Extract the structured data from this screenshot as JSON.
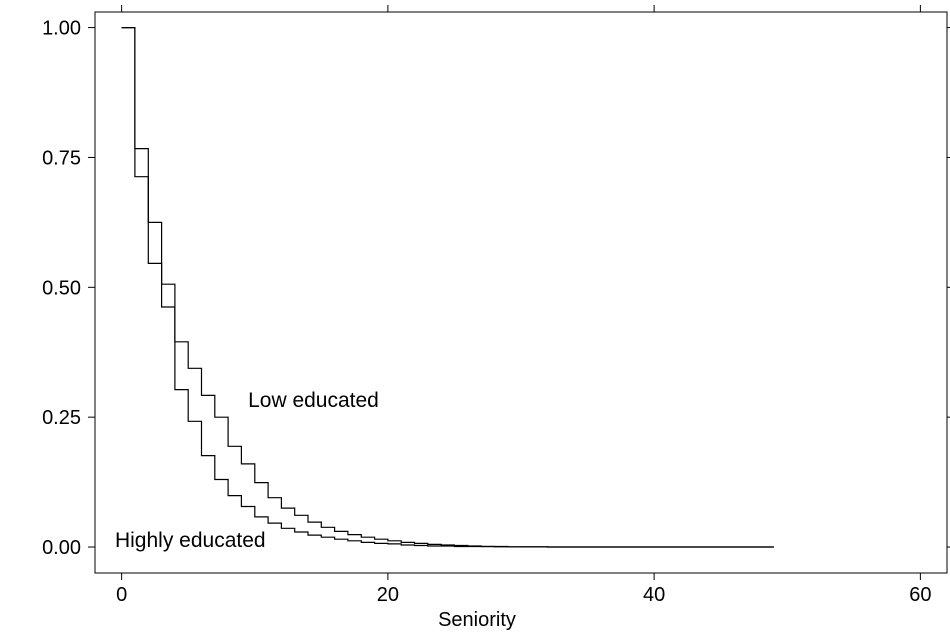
{
  "chart_data": {
    "type": "line",
    "step": "post",
    "title": "",
    "xlabel": "Seniority",
    "ylabel": "",
    "xlim": [
      -2,
      62
    ],
    "ylim": [
      -0.05,
      1.03
    ],
    "x_ticks": [
      0,
      20,
      40,
      60
    ],
    "x_tick_labels": [
      "0",
      "20",
      "40",
      "60"
    ],
    "y_ticks": [
      0,
      0.25,
      0.5,
      0.75,
      1.0
    ],
    "y_tick_labels": [
      "0.00",
      "0.25",
      "0.50",
      "0.75",
      "1.00"
    ],
    "grid": false,
    "legend": "none",
    "line_color": "#000000",
    "series": [
      {
        "x": [
          0,
          1,
          2,
          3,
          4,
          5,
          6,
          7,
          8,
          9,
          10,
          11,
          12,
          13,
          14,
          15,
          16,
          17,
          18,
          19,
          20,
          21,
          22,
          23,
          24,
          25,
          26,
          27,
          28,
          29,
          30,
          32,
          49
        ],
        "y": [
          1.0,
          0.767,
          0.625,
          0.506,
          0.395,
          0.344,
          0.292,
          0.25,
          0.194,
          0.16,
          0.124,
          0.095,
          0.075,
          0.061,
          0.048,
          0.038,
          0.03,
          0.024,
          0.019,
          0.015,
          0.012,
          0.009,
          0.007,
          0.005,
          0.004,
          0.003,
          0.002,
          0.001,
          0.001,
          0.0005,
          0.0003,
          0.0,
          0.0
        ]
      },
      {
        "x": [
          0,
          1,
          2,
          3,
          4,
          5,
          6,
          7,
          8,
          9,
          10,
          11,
          12,
          13,
          14,
          15,
          16,
          17,
          18,
          19,
          20,
          21,
          22,
          23,
          24,
          25,
          26,
          28,
          32,
          49
        ],
        "y": [
          1.0,
          0.713,
          0.546,
          0.462,
          0.303,
          0.242,
          0.176,
          0.13,
          0.099,
          0.078,
          0.058,
          0.046,
          0.036,
          0.029,
          0.023,
          0.019,
          0.015,
          0.012,
          0.009,
          0.007,
          0.006,
          0.004,
          0.003,
          0.002,
          0.002,
          0.001,
          0.001,
          0.0005,
          0.0,
          0.0
        ]
      }
    ],
    "annotations": [
      {
        "text": "Low educated",
        "x": 9.5,
        "y": 0.27
      },
      {
        "text": "Highly educated",
        "x": -0.5,
        "y": 0.0
      }
    ]
  }
}
